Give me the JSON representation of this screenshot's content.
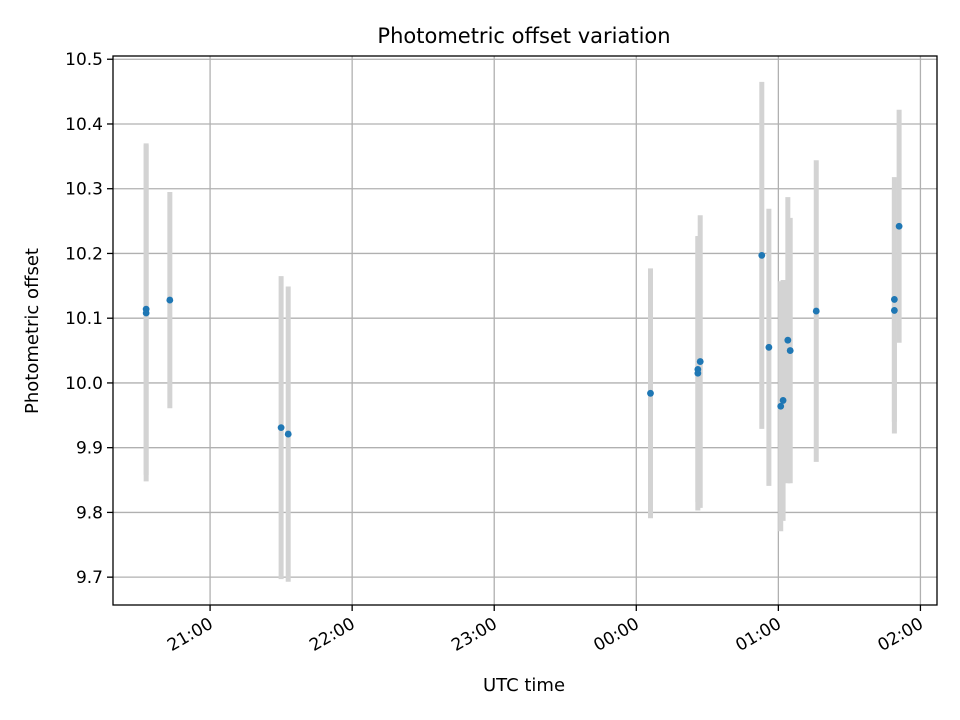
{
  "chart_data": {
    "type": "scatter",
    "title": "Photometric offset variation",
    "xlabel": "UTC time",
    "ylabel": "Photometric offset",
    "grid": true,
    "x_ticks": [
      "21:00",
      "22:00",
      "23:00",
      "00:00",
      "01:00",
      "02:00"
    ],
    "x_ticks_time": [
      "21:00",
      "22:00",
      "23:00",
      "24:00",
      "25:00",
      "26:00"
    ],
    "xlim": [
      "20:19",
      "26:07"
    ],
    "y_ticks": [
      "9.7",
      "9.8",
      "9.9",
      "10.0",
      "10.1",
      "10.2",
      "10.3",
      "10.4",
      "10.5"
    ],
    "ylim": [
      9.657,
      10.505
    ],
    "colors": {
      "point": "#1f77b4",
      "errorbar": "#d3d3d3",
      "grid": "#b0b0b0"
    },
    "series": [
      {
        "points": [
          {
            "x": "20:33",
            "y": 10.108,
            "err": 0.26
          },
          {
            "x": "20:33",
            "y": 10.114,
            "err": 0.256
          },
          {
            "x": "20:43",
            "y": 10.128,
            "err": 0.167
          },
          {
            "x": "21:30",
            "y": 9.931,
            "err": 0.234
          },
          {
            "x": "21:33",
            "y": 9.921,
            "err": 0.228
          },
          {
            "x": "24:06",
            "y": 9.984,
            "err": 0.193
          },
          {
            "x": "24:26",
            "y": 10.015,
            "err": 0.212
          },
          {
            "x": "24:26",
            "y": 10.021,
            "err": 0.205
          },
          {
            "x": "24:27",
            "y": 10.033,
            "err": 0.226
          },
          {
            "x": "24:53",
            "y": 10.197,
            "err": 0.268
          },
          {
            "x": "24:56",
            "y": 10.055,
            "err": 0.214
          },
          {
            "x": "25:01",
            "y": 9.964,
            "err": 0.193
          },
          {
            "x": "25:02",
            "y": 9.973,
            "err": 0.186
          },
          {
            "x": "25:04",
            "y": 10.066,
            "err": 0.221
          },
          {
            "x": "25:05",
            "y": 10.05,
            "err": 0.205
          },
          {
            "x": "25:16",
            "y": 10.111,
            "err": 0.233
          },
          {
            "x": "25:49",
            "y": 10.112,
            "err": 0.19
          },
          {
            "x": "25:49",
            "y": 10.129,
            "err": 0.189
          },
          {
            "x": "25:51",
            "y": 10.242,
            "err": 0.18
          }
        ]
      }
    ]
  }
}
